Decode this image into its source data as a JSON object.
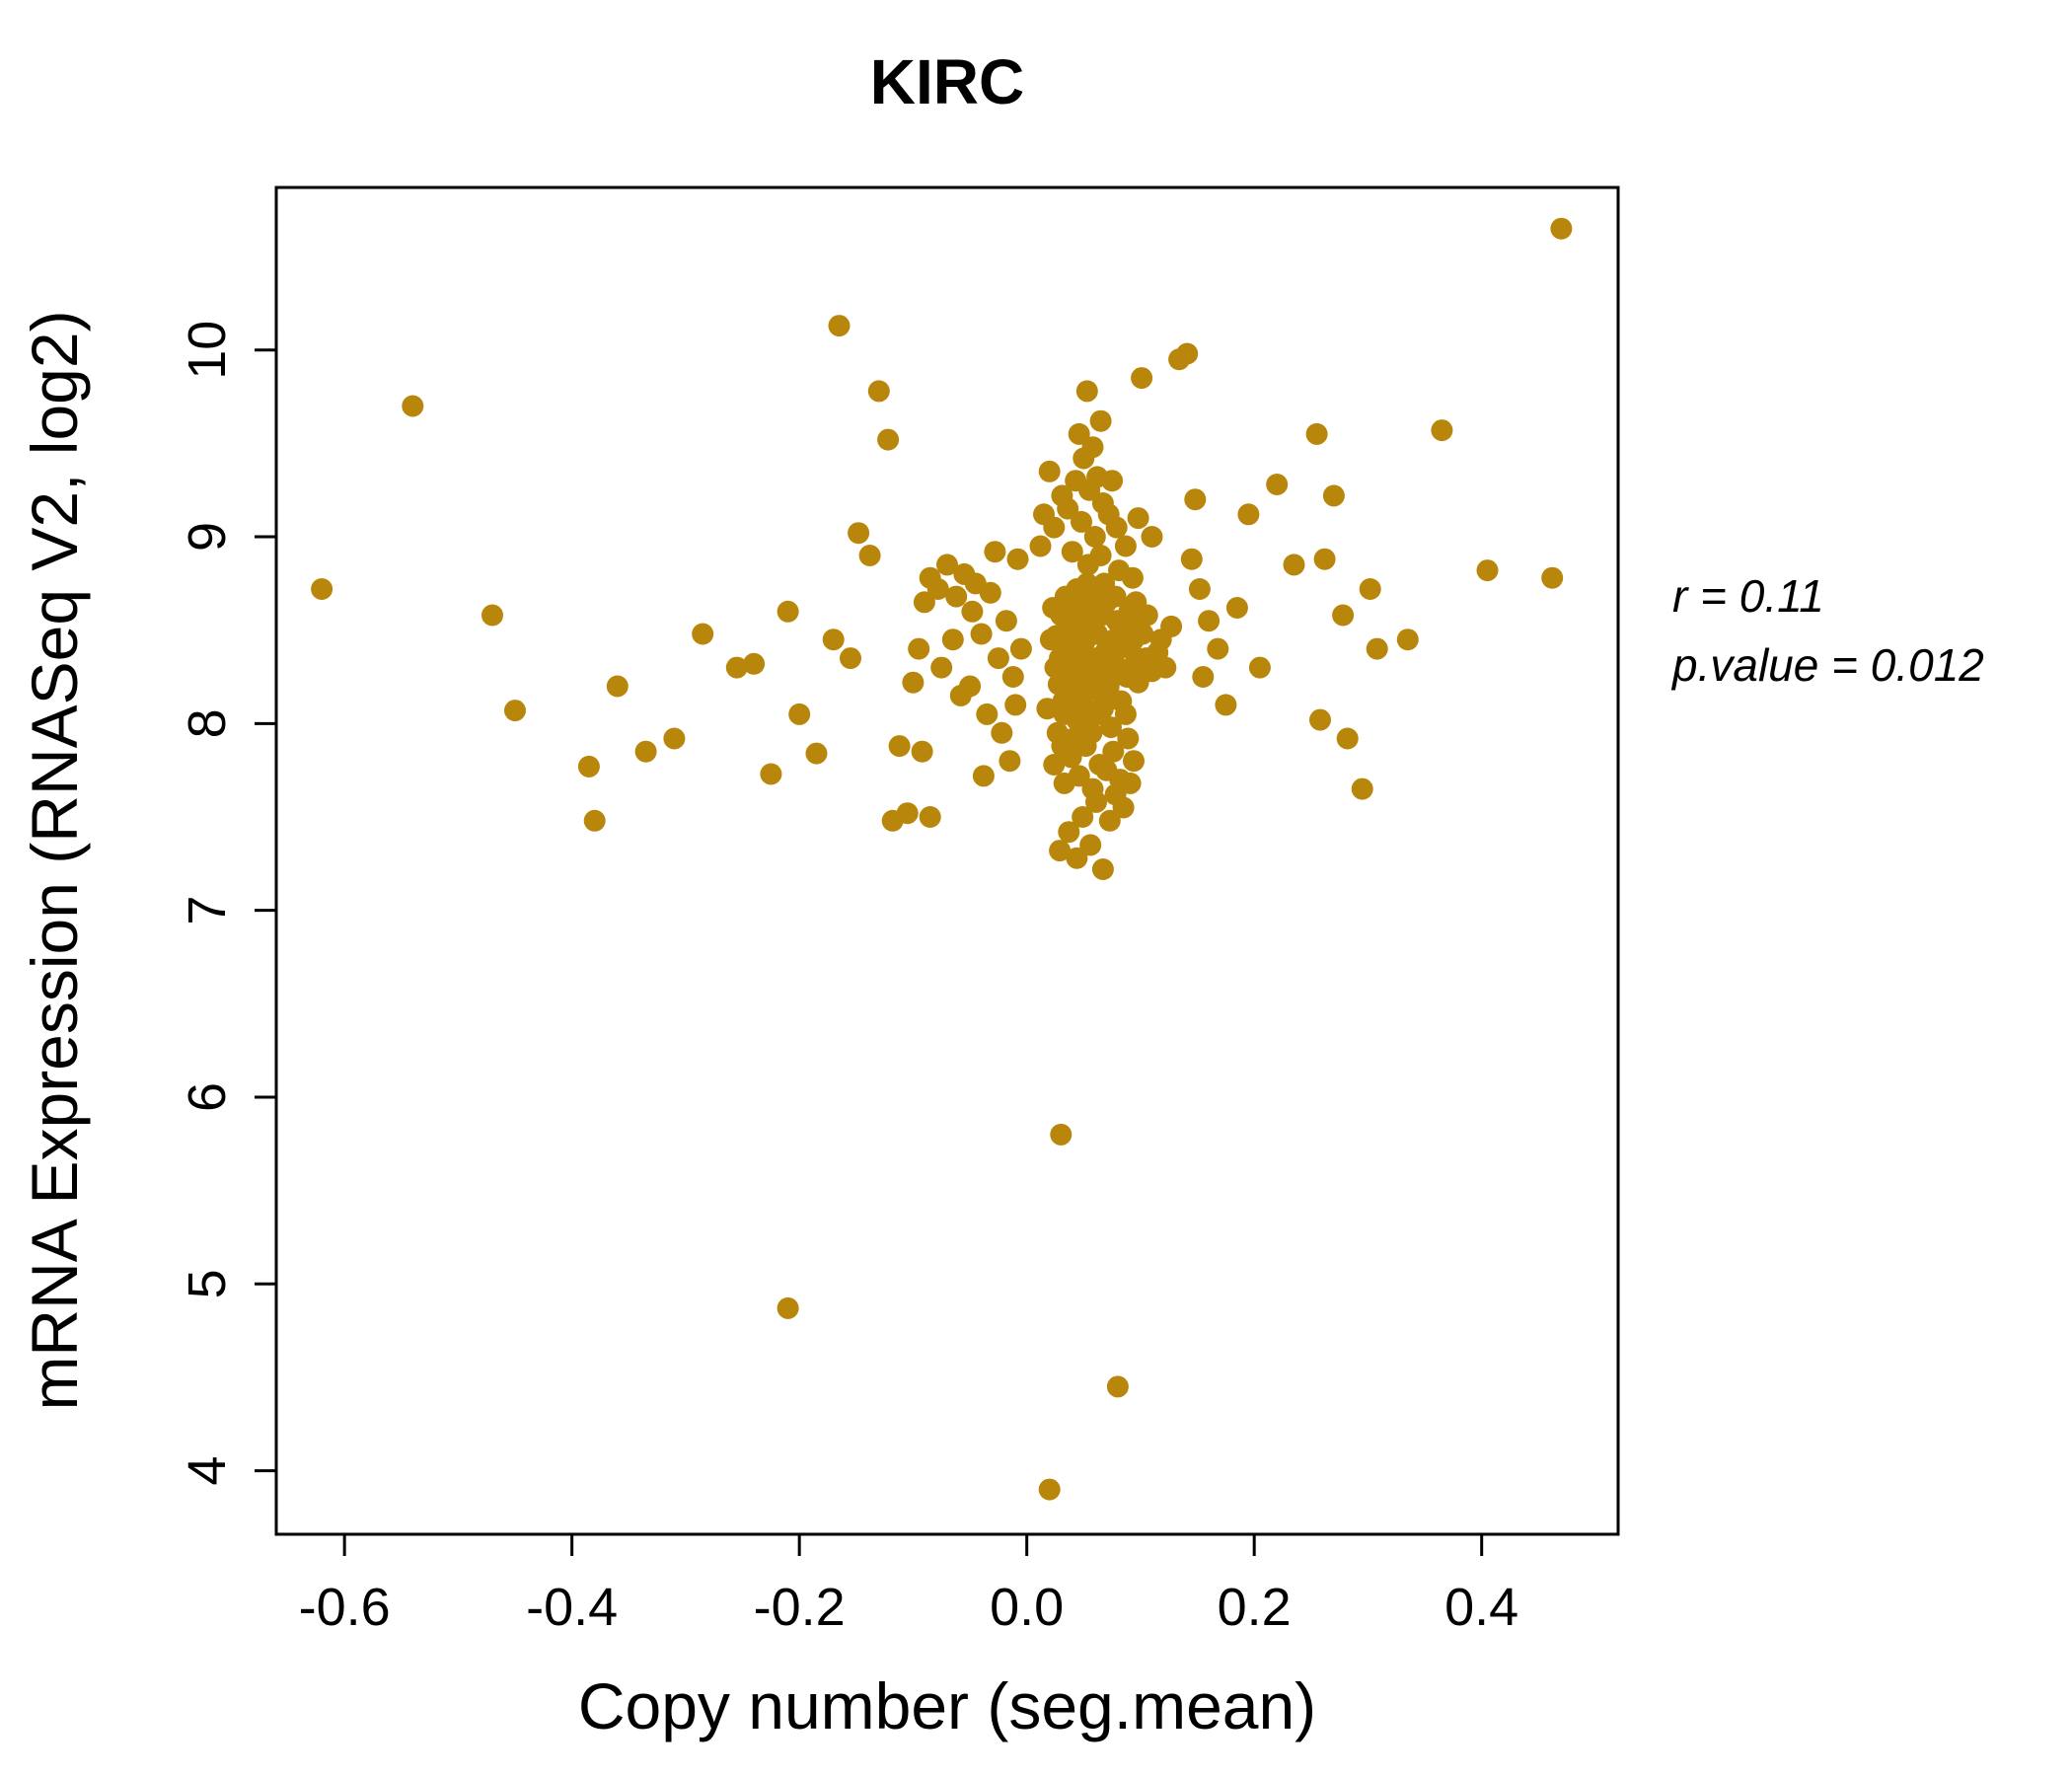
{
  "colors": {
    "accent": "#B8860B",
    "axis": "#000000",
    "background": "#FFFFFF"
  },
  "annotation": {
    "line1": "r = 0.11",
    "line2": "p.value = 0.012"
  },
  "chart_data": {
    "type": "scatter",
    "title": "KIRC",
    "xlabel": "Copy number (seg.mean)",
    "ylabel": "mRNA Expression (RNASeq V2, log2)",
    "xlim": [
      -0.66,
      0.52
    ],
    "ylim": [
      3.66,
      10.87
    ],
    "x_ticks": [
      -0.6,
      -0.4,
      -0.2,
      0.0,
      0.2,
      0.4
    ],
    "x_tick_labels": [
      "-0.6",
      "-0.4",
      "-0.2",
      "0.0",
      "0.2",
      "0.4"
    ],
    "y_ticks": [
      4,
      5,
      6,
      7,
      8,
      9,
      10
    ],
    "y_tick_labels": [
      "4",
      "5",
      "6",
      "7",
      "8",
      "9",
      "10"
    ],
    "grid": false,
    "legend": null,
    "point_color": "#B8860B",
    "point_radius": 11,
    "stats": {
      "r": 0.11,
      "p_value": 0.012
    },
    "points": [
      [
        0.035,
        8.38
      ],
      [
        0.042,
        8.52
      ],
      [
        0.028,
        8.21
      ],
      [
        0.051,
        8.44
      ],
      [
        0.047,
        8.3
      ],
      [
        0.039,
        8.6
      ],
      [
        0.055,
        8.18
      ],
      [
        0.061,
        8.35
      ],
      [
        0.033,
        8.05
      ],
      [
        0.044,
        8.72
      ],
      [
        0.052,
        8.08
      ],
      [
        0.026,
        8.47
      ],
      [
        0.058,
        8.55
      ],
      [
        0.065,
        8.25
      ],
      [
        0.049,
        7.98
      ],
      [
        0.037,
        8.15
      ],
      [
        0.071,
        8.42
      ],
      [
        0.043,
        8.65
      ],
      [
        0.056,
        8.32
      ],
      [
        0.03,
        8.58
      ],
      [
        0.068,
        8.12
      ],
      [
        0.075,
        8.28
      ],
      [
        0.041,
        7.92
      ],
      [
        0.053,
        8.75
      ],
      [
        0.062,
        8.48
      ],
      [
        0.036,
        8.26
      ],
      [
        0.048,
        8.39
      ],
      [
        0.059,
        8.62
      ],
      [
        0.072,
        8.2
      ],
      [
        0.045,
        8.1
      ],
      [
        0.031,
        7.88
      ],
      [
        0.054,
        8.85
      ],
      [
        0.066,
        8.58
      ],
      [
        0.077,
        8.45
      ],
      [
        0.04,
        8.32
      ],
      [
        0.05,
        8.22
      ],
      [
        0.063,
        8.05
      ],
      [
        0.034,
        8.68
      ],
      [
        0.057,
        7.95
      ],
      [
        0.069,
        8.38
      ],
      [
        0.08,
        8.3
      ],
      [
        0.046,
        8.55
      ],
      [
        0.038,
        8.42
      ],
      [
        0.06,
        8.7
      ],
      [
        0.073,
        8.15
      ],
      [
        0.084,
        8.48
      ],
      [
        0.029,
        8.35
      ],
      [
        0.051,
        8.28
      ],
      [
        0.064,
        8.6
      ],
      [
        0.042,
        8.18
      ],
      [
        0.076,
        8.35
      ],
      [
        0.088,
        8.25
      ],
      [
        0.055,
        8.48
      ],
      [
        0.067,
        8.08
      ],
      [
        0.079,
        8.55
      ],
      [
        0.091,
        8.4
      ],
      [
        0.048,
        8.62
      ],
      [
        0.06,
        8.22
      ],
      [
        0.083,
        8.12
      ],
      [
        0.095,
        8.32
      ],
      [
        0.036,
        8.5
      ],
      [
        0.07,
        8.65
      ],
      [
        0.082,
        8.28
      ],
      [
        0.094,
        8.45
      ],
      [
        0.105,
        8.35
      ],
      [
        0.044,
        8.02
      ],
      [
        0.057,
        8.58
      ],
      [
        0.086,
        8.5
      ],
      [
        0.098,
        8.22
      ],
      [
        0.11,
        8.28
      ],
      [
        0.025,
        8.3
      ],
      [
        0.068,
        8.75
      ],
      [
        0.09,
        8.6
      ],
      [
        0.102,
        8.48
      ],
      [
        0.115,
        8.38
      ],
      [
        0.032,
        8.12
      ],
      [
        0.074,
        7.98
      ],
      [
        0.087,
        8.05
      ],
      [
        0.1,
        8.55
      ],
      [
        0.122,
        8.3
      ],
      [
        0.021,
        8.45
      ],
      [
        0.065,
        8.9
      ],
      [
        0.078,
        8.68
      ],
      [
        0.093,
        8.78
      ],
      [
        0.106,
        8.58
      ],
      [
        0.118,
        8.45
      ],
      [
        0.023,
        8.62
      ],
      [
        0.081,
        8.82
      ],
      [
        0.096,
        8.65
      ],
      [
        0.127,
        8.52
      ],
      [
        0.018,
        8.08
      ],
      [
        0.027,
        7.95
      ],
      [
        0.039,
        7.82
      ],
      [
        0.052,
        7.88
      ],
      [
        0.064,
        7.78
      ],
      [
        0.076,
        7.85
      ],
      [
        0.089,
        7.92
      ],
      [
        0.046,
        7.72
      ],
      [
        0.058,
        7.65
      ],
      [
        0.07,
        7.75
      ],
      [
        0.033,
        7.68
      ],
      [
        0.082,
        7.7
      ],
      [
        0.094,
        7.8
      ],
      [
        0.024,
        7.78
      ],
      [
        0.061,
        7.58
      ],
      [
        0.049,
        7.5
      ],
      [
        0.073,
        7.48
      ],
      [
        0.037,
        7.42
      ],
      [
        0.085,
        7.55
      ],
      [
        0.056,
        7.35
      ],
      [
        0.044,
        7.28
      ],
      [
        0.067,
        7.22
      ],
      [
        0.029,
        7.32
      ],
      [
        0.078,
        7.62
      ],
      [
        0.091,
        7.68
      ],
      [
        0.012,
        8.95
      ],
      [
        0.024,
        9.05
      ],
      [
        0.036,
        9.15
      ],
      [
        0.048,
        9.08
      ],
      [
        0.06,
        9.0
      ],
      [
        0.072,
        9.12
      ],
      [
        0.031,
        9.22
      ],
      [
        0.043,
        9.3
      ],
      [
        0.055,
        9.25
      ],
      [
        0.067,
        9.18
      ],
      [
        0.02,
        9.35
      ],
      [
        0.05,
        9.42
      ],
      [
        0.062,
        9.32
      ],
      [
        0.079,
        9.05
      ],
      [
        0.087,
        8.95
      ],
      [
        0.098,
        9.1
      ],
      [
        0.11,
        9.0
      ],
      [
        0.04,
        8.92
      ],
      [
        0.015,
        9.12
      ],
      [
        0.058,
        9.48
      ],
      [
        0.053,
        9.78
      ],
      [
        0.065,
        9.62
      ],
      [
        0.046,
        9.55
      ],
      [
        0.101,
        9.85
      ],
      [
        0.134,
        9.95
      ],
      [
        0.141,
        9.98
      ],
      [
        0.075,
        9.3
      ],
      [
        -0.005,
        8.4
      ],
      [
        -0.012,
        8.25
      ],
      [
        -0.018,
        8.55
      ],
      [
        -0.025,
        8.35
      ],
      [
        -0.032,
        8.7
      ],
      [
        -0.04,
        8.48
      ],
      [
        -0.048,
        8.6
      ],
      [
        -0.055,
        8.8
      ],
      [
        -0.062,
        8.68
      ],
      [
        -0.07,
        8.85
      ],
      [
        -0.078,
        8.72
      ],
      [
        -0.085,
        8.78
      ],
      [
        -0.01,
        8.1
      ],
      [
        -0.022,
        7.95
      ],
      [
        -0.035,
        8.05
      ],
      [
        -0.05,
        8.2
      ],
      [
        -0.065,
        8.45
      ],
      [
        -0.008,
        8.88
      ],
      [
        -0.028,
        8.92
      ],
      [
        -0.045,
        8.75
      ],
      [
        -0.09,
        8.65
      ],
      [
        -0.095,
        8.4
      ],
      [
        -0.075,
        8.3
      ],
      [
        -0.058,
        8.15
      ],
      [
        -0.015,
        7.8
      ],
      [
        -0.038,
        7.72
      ],
      [
        -0.092,
        7.85
      ],
      [
        -0.105,
        7.52
      ],
      [
        -0.118,
        7.48
      ],
      [
        -0.085,
        7.5
      ],
      [
        -0.1,
        8.22
      ],
      [
        -0.112,
        7.88
      ],
      [
        -0.13,
        9.78
      ],
      [
        -0.122,
        9.52
      ],
      [
        -0.165,
        10.13
      ],
      [
        -0.148,
        9.02
      ],
      [
        -0.138,
        8.9
      ],
      [
        -0.155,
        8.35
      ],
      [
        -0.17,
        8.45
      ],
      [
        -0.185,
        7.84
      ],
      [
        -0.2,
        8.05
      ],
      [
        -0.21,
        8.6
      ],
      [
        -0.225,
        7.73
      ],
      [
        -0.24,
        8.32
      ],
      [
        -0.285,
        8.48
      ],
      [
        -0.31,
        7.92
      ],
      [
        -0.335,
        7.85
      ],
      [
        -0.36,
        8.2
      ],
      [
        -0.385,
        7.77
      ],
      [
        -0.38,
        7.48
      ],
      [
        -0.45,
        8.07
      ],
      [
        -0.47,
        8.58
      ],
      [
        -0.54,
        9.7
      ],
      [
        -0.62,
        8.72
      ],
      [
        -0.21,
        4.87
      ],
      [
        -0.255,
        8.3
      ],
      [
        0.145,
        8.88
      ],
      [
        0.152,
        8.72
      ],
      [
        0.16,
        8.55
      ],
      [
        0.168,
        8.4
      ],
      [
        0.155,
        8.25
      ],
      [
        0.175,
        8.1
      ],
      [
        0.148,
        9.2
      ],
      [
        0.185,
        8.62
      ],
      [
        0.195,
        9.12
      ],
      [
        0.205,
        8.3
      ],
      [
        0.22,
        9.28
      ],
      [
        0.235,
        8.85
      ],
      [
        0.255,
        9.55
      ],
      [
        0.262,
        8.88
      ],
      [
        0.27,
        9.22
      ],
      [
        0.278,
        8.58
      ],
      [
        0.258,
        8.02
      ],
      [
        0.282,
        7.92
      ],
      [
        0.295,
        7.65
      ],
      [
        0.302,
        8.72
      ],
      [
        0.308,
        8.4
      ],
      [
        0.335,
        8.45
      ],
      [
        0.365,
        9.57
      ],
      [
        0.405,
        8.82
      ],
      [
        0.462,
        8.78
      ],
      [
        0.47,
        10.65
      ],
      [
        0.03,
        5.8
      ],
      [
        0.08,
        4.45
      ],
      [
        0.02,
        3.9
      ]
    ]
  }
}
